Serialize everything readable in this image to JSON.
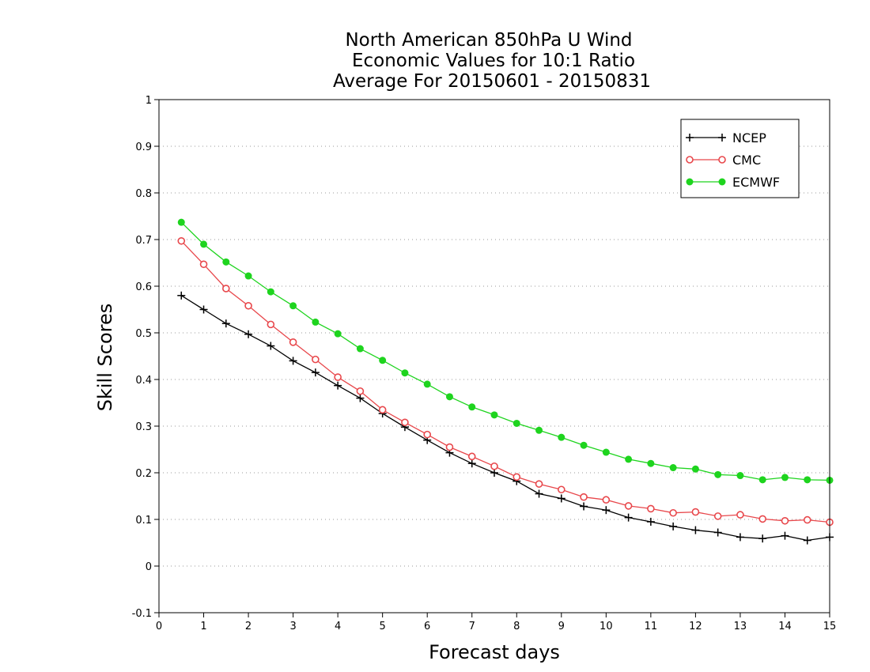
{
  "chart_data": {
    "type": "line",
    "title": [
      "North American 850hPa U Wind",
      "Economic Values for 10:1 Ratio",
      "Average For 20150601 - 20150831"
    ],
    "xlabel": "Forecast days",
    "ylabel": "Skill Scores",
    "xlim": [
      0,
      15
    ],
    "ylim": [
      -0.1,
      1
    ],
    "xticks": [
      0,
      1,
      2,
      3,
      4,
      5,
      6,
      7,
      8,
      9,
      10,
      11,
      12,
      13,
      14,
      15
    ],
    "xtick_labels": [
      "0",
      "1",
      "2",
      "3",
      "4",
      "5",
      "6",
      "7",
      "8",
      "9",
      "10",
      "11",
      "12",
      "13",
      "14",
      "15"
    ],
    "yticks": [
      -0.1,
      0,
      0.1,
      0.2,
      0.3,
      0.4,
      0.5,
      0.6,
      0.7,
      0.8,
      0.9,
      1
    ],
    "ytick_labels": [
      "-0.1",
      "0",
      "0.1",
      "0.2",
      "0.3",
      "0.4",
      "0.5",
      "0.6",
      "0.7",
      "0.8",
      "0.9",
      "1"
    ],
    "grid": "horizontal-dotted",
    "legend_position": "top-right",
    "x": [
      0.5,
      1,
      1.5,
      2,
      2.5,
      3,
      3.5,
      4,
      4.5,
      5,
      5.5,
      6,
      6.5,
      7,
      7.5,
      8,
      8.5,
      9,
      9.5,
      10,
      10.5,
      11,
      11.5,
      12,
      12.5,
      13,
      13.5,
      14,
      14.5,
      15
    ],
    "series": [
      {
        "name": "NCEP",
        "color": "#000000",
        "marker": "plus",
        "values": [
          0.58,
          0.55,
          0.52,
          0.497,
          0.472,
          0.44,
          0.415,
          0.387,
          0.36,
          0.327,
          0.298,
          0.27,
          0.243,
          0.22,
          0.2,
          0.182,
          0.155,
          0.145,
          0.128,
          0.12,
          0.104,
          0.095,
          0.085,
          0.077,
          0.072,
          0.062,
          0.059,
          0.065,
          0.055,
          0.062
        ]
      },
      {
        "name": "CMC",
        "color": "#e8474b",
        "marker": "open-circle",
        "values": [
          0.697,
          0.647,
          0.595,
          0.558,
          0.518,
          0.48,
          0.443,
          0.405,
          0.375,
          0.335,
          0.308,
          0.282,
          0.255,
          0.235,
          0.214,
          0.191,
          0.176,
          0.164,
          0.148,
          0.142,
          0.129,
          0.123,
          0.114,
          0.116,
          0.107,
          0.11,
          0.101,
          0.097,
          0.099,
          0.094
        ]
      },
      {
        "name": "ECMWF",
        "color": "#1ed41e",
        "marker": "filled-circle",
        "values": [
          0.737,
          0.69,
          0.652,
          0.622,
          0.588,
          0.558,
          0.523,
          0.498,
          0.466,
          0.441,
          0.414,
          0.39,
          0.363,
          0.341,
          0.324,
          0.306,
          0.291,
          0.276,
          0.259,
          0.244,
          0.229,
          0.22,
          0.211,
          0.208,
          0.196,
          0.194,
          0.185,
          0.19,
          0.185,
          0.184
        ]
      }
    ]
  }
}
